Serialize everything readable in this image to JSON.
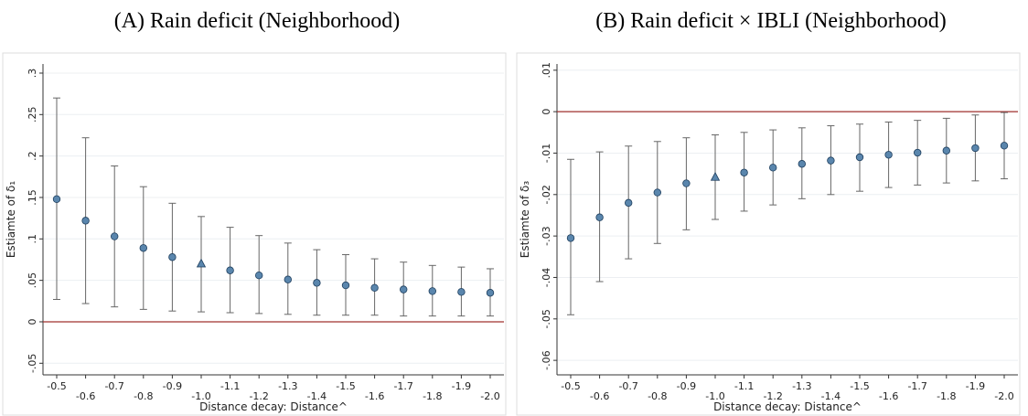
{
  "chart_data": [
    {
      "type": "errorbar",
      "title": "(A) Rain deficit (Neighborhood)",
      "x_label": "Distance decay: Distance^",
      "y_label": "Estiamte of δ₁",
      "categories": [
        "-0.5",
        "-0.6",
        "-0.7",
        "-0.8",
        "-0.9",
        "-1.0",
        "-1.1",
        "-1.2",
        "-1.3",
        "-1.4",
        "-1.5",
        "-1.6",
        "-1.7",
        "-1.8",
        "-1.9",
        "-2.0"
      ],
      "values": [
        0.148,
        0.122,
        0.103,
        0.089,
        0.078,
        0.07,
        0.062,
        0.056,
        0.051,
        0.047,
        0.044,
        0.041,
        0.039,
        0.037,
        0.036,
        0.035
      ],
      "lower": [
        0.027,
        0.022,
        0.018,
        0.015,
        0.013,
        0.012,
        0.011,
        0.01,
        0.009,
        0.008,
        0.008,
        0.008,
        0.007,
        0.007,
        0.007,
        0.007
      ],
      "upper": [
        0.27,
        0.222,
        0.188,
        0.163,
        0.143,
        0.127,
        0.114,
        0.104,
        0.095,
        0.087,
        0.081,
        0.076,
        0.072,
        0.068,
        0.066,
        0.064
      ],
      "markers": [
        "circle",
        "circle",
        "circle",
        "circle",
        "circle",
        "triangle",
        "circle",
        "circle",
        "circle",
        "circle",
        "circle",
        "circle",
        "circle",
        "circle",
        "circle",
        "circle"
      ],
      "color": "#5a86ad",
      "refline": 0,
      "refline_color": "#a0302e",
      "ylim": [
        -0.064,
        0.311
      ],
      "yticks": [
        {
          "value": -0.05,
          "label": "-.05"
        },
        0,
        {
          "value": 0.05,
          "label": ".05"
        },
        {
          "value": 0.1,
          "label": ".1"
        },
        {
          "value": 0.15,
          "label": ".15"
        },
        {
          "value": 0.2,
          "label": ".2"
        },
        {
          "value": 0.25,
          "label": ".25"
        },
        {
          "value": 0.3,
          "label": ".3"
        }
      ],
      "grid": true
    },
    {
      "type": "errorbar",
      "title": "(B) Rain deficit × IBLI (Neighborhood)",
      "x_label": "Distance decay: Distance^",
      "y_label": "Estiamte of δ₃",
      "categories": [
        "-0.5",
        "-0.6",
        "-0.7",
        "-0.8",
        "-0.9",
        "-1.0",
        "-1.1",
        "-1.2",
        "-1.3",
        "-1.4",
        "-1.5",
        "-1.6",
        "-1.7",
        "-1.8",
        "-1.9",
        "-2.0"
      ],
      "values": [
        -0.0305,
        -0.0255,
        -0.022,
        -0.0195,
        -0.0173,
        -0.0158,
        -0.0147,
        -0.0135,
        -0.0126,
        -0.0118,
        -0.011,
        -0.0104,
        -0.0099,
        -0.0094,
        -0.0088,
        -0.0082
      ],
      "lower": [
        -0.049,
        -0.041,
        -0.0355,
        -0.0318,
        -0.0285,
        -0.026,
        -0.024,
        -0.0225,
        -0.021,
        -0.02,
        -0.0192,
        -0.0183,
        -0.0177,
        -0.0172,
        -0.0167,
        -0.0162
      ],
      "upper": [
        -0.0115,
        -0.0097,
        -0.0083,
        -0.0072,
        -0.0063,
        -0.0056,
        -0.005,
        -0.0044,
        -0.0039,
        -0.0034,
        -0.003,
        -0.0025,
        -0.0021,
        -0.0016,
        -0.0008,
        -0.0002
      ],
      "markers": [
        "circle",
        "circle",
        "circle",
        "circle",
        "circle",
        "triangle",
        "circle",
        "circle",
        "circle",
        "circle",
        "circle",
        "circle",
        "circle",
        "circle",
        "circle",
        "circle"
      ],
      "color": "#5a86ad",
      "refline": 0,
      "refline_color": "#a0302e",
      "ylim": [
        -0.0635,
        0.0115
      ],
      "yticks": [
        {
          "value": -0.06,
          "label": "-.06"
        },
        {
          "value": -0.05,
          "label": "-.05"
        },
        {
          "value": -0.04,
          "label": "-.04"
        },
        {
          "value": -0.03,
          "label": "-.03"
        },
        {
          "value": -0.02,
          "label": "-.02"
        },
        {
          "value": -0.01,
          "label": "-.01"
        },
        0,
        {
          "value": 0.01,
          "label": ".01"
        }
      ],
      "grid": true
    }
  ]
}
